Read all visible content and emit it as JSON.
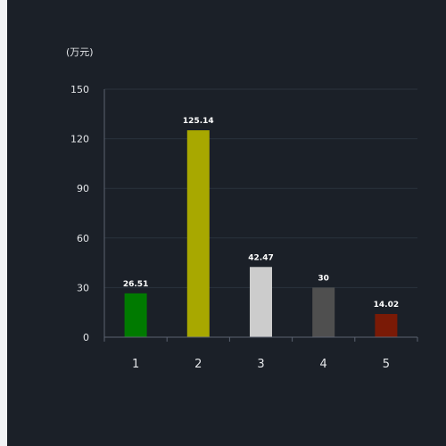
{
  "chart_data": {
    "type": "bar",
    "unit_label": "(万元)",
    "categories": [
      "1",
      "2",
      "3",
      "4",
      "5"
    ],
    "values": [
      26.51,
      125.14,
      42.47,
      30,
      14.02
    ],
    "value_labels": [
      "26.51",
      "125.14",
      "42.47",
      "30",
      "14.02"
    ],
    "bar_colors": [
      "#007a00",
      "#a8a800",
      "#cccccc",
      "#4f4f4f",
      "#7a1a06"
    ],
    "ylim": [
      0,
      150
    ],
    "yticks": [
      0,
      30,
      60,
      90,
      120,
      150
    ],
    "ytick_labels": [
      "0",
      "30",
      "60",
      "90",
      "120",
      "150"
    ],
    "grid": true,
    "title": "",
    "xlabel": "",
    "ylabel": ""
  },
  "colors": {
    "panel_background": "#1b2028",
    "page_background": "#f2f3f5",
    "gridline": "#2b323c",
    "axis_line": "#5b6270",
    "text": "#e4e6e9"
  }
}
